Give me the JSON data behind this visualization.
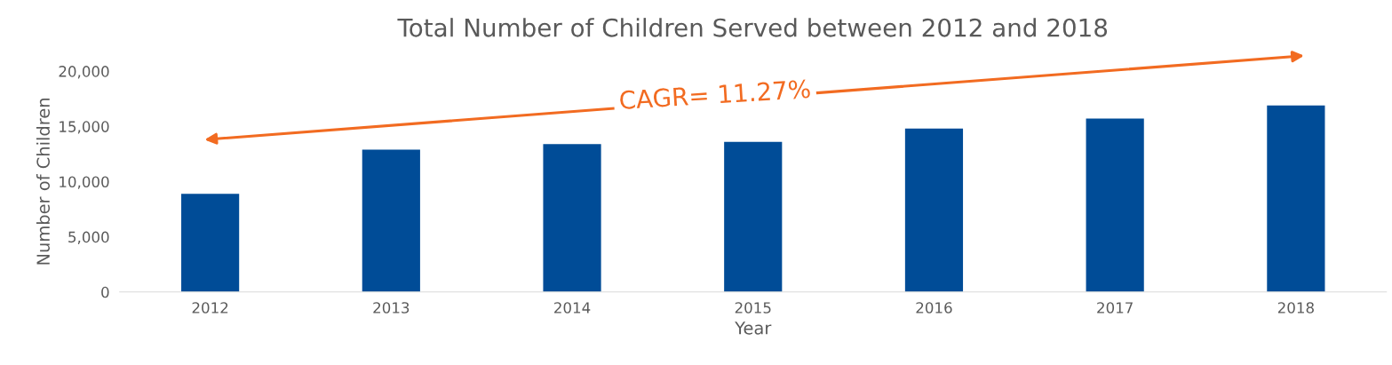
{
  "chart_data": {
    "type": "bar",
    "title": "Total Number of Children Served between 2012 and 2018",
    "xlabel": "Year",
    "ylabel": "Number of Children",
    "categories": [
      "2012",
      "2013",
      "2014",
      "2015",
      "2016",
      "2017",
      "2018"
    ],
    "values": [
      8900,
      12900,
      13400,
      13600,
      14800,
      15700,
      16900
    ],
    "color": "#004c97",
    "ylim": [
      0,
      20000
    ],
    "yticks": [
      {
        "value": 0,
        "label": "0"
      },
      {
        "value": 5000,
        "label": "5,000"
      },
      {
        "value": 10000,
        "label": "10,000"
      },
      {
        "value": 15000,
        "label": "15,000"
      },
      {
        "value": 20000,
        "label": "20,000"
      }
    ],
    "grid": false,
    "annotations": [
      "CAGR= 11.27%"
    ]
  }
}
